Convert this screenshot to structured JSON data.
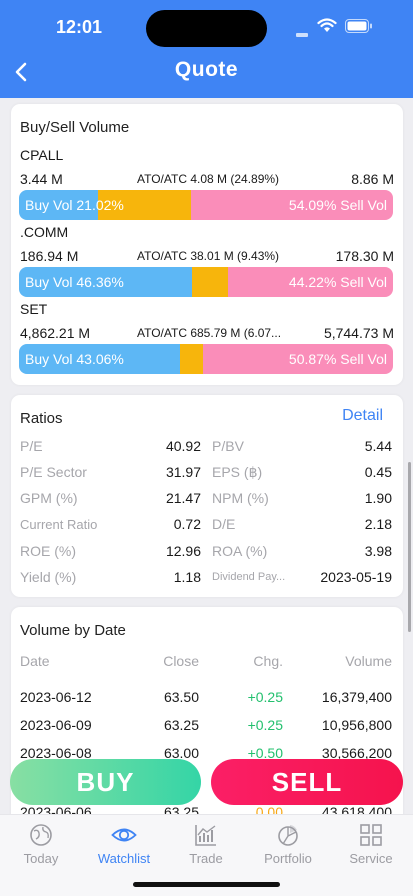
{
  "status_bar": {
    "time": "12:01"
  },
  "header": {
    "title": "Quote"
  },
  "volume_card": {
    "title": "Buy/Sell Volume",
    "items": [
      {
        "name": "CPALL",
        "buy_vol": "3.44 M",
        "ato_atc": "ATO/ATC 4.08 M (24.89%)",
        "sell_vol": "8.86 M",
        "buy_label": "Buy Vol 21.02%",
        "sell_label": "54.09% Sell Vol",
        "buy_pct": 21.02,
        "ato_pct": 24.89,
        "sell_pct": 54.09
      },
      {
        "name": ".COMM",
        "buy_vol": "186.94 M",
        "ato_atc": "ATO/ATC 38.01 M (9.43%)",
        "sell_vol": "178.30 M",
        "buy_label": "Buy Vol 46.36%",
        "sell_label": "44.22% Sell Vol",
        "buy_pct": 46.36,
        "ato_pct": 9.43,
        "sell_pct": 44.22
      },
      {
        "name": "SET",
        "buy_vol": "4,862.21 M",
        "ato_atc": "ATO/ATC 685.79 M (6.07...",
        "sell_vol": "5,744.73 M",
        "buy_label": "Buy Vol 43.06%",
        "sell_label": "50.87% Sell Vol",
        "buy_pct": 43.06,
        "ato_pct": 6.07,
        "sell_pct": 50.87
      }
    ]
  },
  "ratios_card": {
    "title": "Ratios",
    "detail_link": "Detail",
    "rows": [
      {
        "l1": "P/E",
        "v1": "40.92",
        "l2": "P/BV",
        "v2": "5.44"
      },
      {
        "l1": "P/E Sector",
        "v1": "31.97",
        "l2": "EPS (฿)",
        "v2": "0.45"
      },
      {
        "l1": "GPM (%)",
        "v1": "21.47",
        "l2": "NPM (%)",
        "v2": "1.90"
      },
      {
        "l1": "Current Ratio",
        "v1": "0.72",
        "l2": "D/E",
        "v2": "2.18"
      },
      {
        "l1": "ROE (%)",
        "v1": "12.96",
        "l2": "ROA (%)",
        "v2": "3.98"
      },
      {
        "l1": "Yield (%)",
        "v1": "1.18",
        "l2": "Dividend Pay...",
        "v2": "2023-05-19"
      }
    ]
  },
  "date_card": {
    "title": "Volume by Date",
    "headers": {
      "date": "Date",
      "close": "Close",
      "chg": "Chg.",
      "volume": "Volume"
    },
    "rows": [
      {
        "date": "2023-06-12",
        "close": "63.50",
        "chg": "+0.25",
        "volume": "16,379,400",
        "chg_color": "#23c06e"
      },
      {
        "date": "2023-06-09",
        "close": "63.25",
        "chg": "+0.25",
        "volume": "10,956,800",
        "chg_color": "#23c06e"
      },
      {
        "date": "2023-06-08",
        "close": "63.00",
        "chg": "+0.50",
        "volume": "30,566,200",
        "chg_color": "#23c06e"
      },
      {
        "date": "2023-06-06",
        "close": "63.25",
        "chg": "0.00",
        "volume": "43,618,400",
        "chg_color": "#f7a816"
      }
    ]
  },
  "actions": {
    "buy": "BUY",
    "sell": "SELL"
  },
  "tabs": [
    {
      "label": "Today",
      "icon": "globe-icon"
    },
    {
      "label": "Watchlist",
      "icon": "eye-icon"
    },
    {
      "label": "Trade",
      "icon": "chart-icon"
    },
    {
      "label": "Portfolio",
      "icon": "pie-icon"
    },
    {
      "label": "Service",
      "icon": "grid-icon"
    }
  ],
  "colors": {
    "accent": "#3f84f4",
    "buy_bar": "#5db7f5",
    "ato_bar": "#f7b50c",
    "sell_bar": "#fa8db9",
    "positive": "#23c06e",
    "neutral": "#f7a816"
  }
}
